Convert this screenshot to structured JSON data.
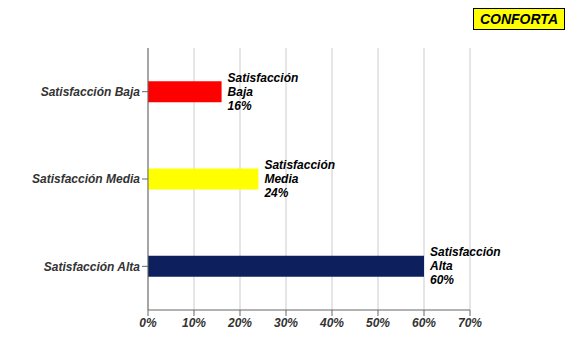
{
  "chart_data": {
    "type": "bar",
    "orientation": "horizontal",
    "categories": [
      "Satisfacción Alta",
      "Satisfacción Media",
      "Satisfacción Baja"
    ],
    "values": [
      60,
      24,
      16
    ],
    "colors": [
      "#0d1f5c",
      "#ffff00",
      "#ff0000"
    ],
    "xlim": [
      0,
      70
    ],
    "xticks": [
      {
        "value": 0,
        "label": "0%"
      },
      {
        "value": 10,
        "label": "10%"
      },
      {
        "value": 20,
        "label": "20%"
      },
      {
        "value": 30,
        "label": "30%"
      },
      {
        "value": 40,
        "label": "40%"
      },
      {
        "value": 50,
        "label": "50%"
      },
      {
        "value": 60,
        "label": "60%"
      },
      {
        "value": 70,
        "label": "70%"
      }
    ],
    "grid": true,
    "annotations": [
      {
        "text": "Satisfacción\nAlta\n60%",
        "category": "Satisfacción Alta"
      },
      {
        "text": "Satisfacción\nMedia\n24%",
        "category": "Satisfacción Media"
      },
      {
        "text": "Satisfacción\nBaja\n16%",
        "category": "Satisfacción Baja"
      },
      {
        "text": "CONFORTA",
        "color": "#ffff00"
      }
    ]
  }
}
